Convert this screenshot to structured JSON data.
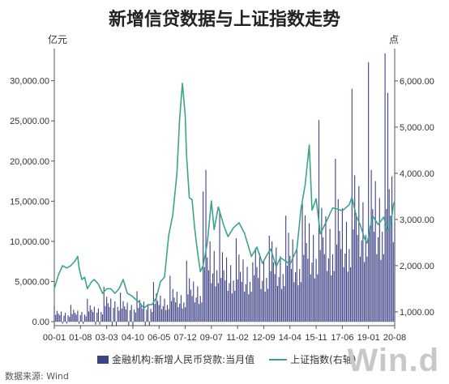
{
  "header": {
    "title": "新增信贷数据与上证指数走势",
    "unit_left": "亿元",
    "unit_right": "点"
  },
  "legend": {
    "bar_label": "金融机构:新增人民币贷款:当月值",
    "line_label": "上证指数(右轴)"
  },
  "footer": {
    "source": "数据来源: Wind",
    "logo": "Win.d"
  },
  "chart_data": {
    "type": "bar+line",
    "title": "新增信贷数据与上证指数走势",
    "x_tick_labels": [
      "00-01",
      "01-08",
      "03-03",
      "04-10",
      "06-05",
      "07-12",
      "09-07",
      "11-02",
      "12-09",
      "14-04",
      "15-11",
      "17-06",
      "19-01",
      "20-08"
    ],
    "x_range": [
      "2000-01",
      "2020-08"
    ],
    "y_left": {
      "unit": "亿元",
      "ylim": [
        -500,
        34000
      ],
      "ticks": [
        0,
        5000,
        10000,
        15000,
        20000,
        25000,
        30000
      ],
      "tick_labels": [
        "0.00",
        "5,000.00",
        "10,000.00",
        "15,000.00",
        "20,000.00",
        "25,000.00",
        "30,000.00"
      ]
    },
    "y_right": {
      "unit": "点",
      "ylim": [
        700,
        6700
      ],
      "ticks": [
        1000,
        2000,
        3000,
        4000,
        5000,
        6000
      ],
      "tick_labels": [
        "1,000.00",
        "2,000.00",
        "3,000.00",
        "4,000.00",
        "5,000.00",
        "6,000.00"
      ]
    },
    "bar_series": {
      "name": "金融机构:新增人民币贷款:当月值",
      "color": "#3d4185",
      "yearly_avg": {
        "2000": 1000,
        "2001": 1100,
        "2002": 1500,
        "2003": 2300,
        "2004": 1900,
        "2005": 2000,
        "2006": 2600,
        "2007": 3000,
        "2008": 4000,
        "2009": 8000,
        "2010": 6400,
        "2011": 6200,
        "2012": 6800,
        "2013": 7400,
        "2014": 8200,
        "2015": 9800,
        "2016": 10500,
        "2017": 11300,
        "2018": 13500,
        "2019": 14000,
        "2020": 16500
      },
      "peaks": [
        {
          "date": "2009-01",
          "value": 16200
        },
        {
          "date": "2009-03",
          "value": 18900
        },
        {
          "date": "2010-01",
          "value": 13900
        },
        {
          "date": "2011-01",
          "value": 10400
        },
        {
          "date": "2012-01",
          "value": 7400
        },
        {
          "date": "2013-01",
          "value": 10700
        },
        {
          "date": "2014-01",
          "value": 13200
        },
        {
          "date": "2015-01",
          "value": 14700
        },
        {
          "date": "2016-01",
          "value": 25100
        },
        {
          "date": "2017-01",
          "value": 20300
        },
        {
          "date": "2018-01",
          "value": 29000
        },
        {
          "date": "2019-01",
          "value": 32300
        },
        {
          "date": "2020-01",
          "value": 33400
        },
        {
          "date": "2020-03",
          "value": 28500
        },
        {
          "date": "2020-06",
          "value": 18100
        }
      ]
    },
    "line_series": {
      "name": "上证指数(右轴)",
      "color": "#3aa58c",
      "points": [
        [
          "2000-01",
          1500
        ],
        [
          "2000-04",
          1800
        ],
        [
          "2000-07",
          2000
        ],
        [
          "2000-10",
          1950
        ],
        [
          "2001-01",
          2000
        ],
        [
          "2001-04",
          2100
        ],
        [
          "2001-06",
          2200
        ],
        [
          "2001-07",
          1950
        ],
        [
          "2001-09",
          1700
        ],
        [
          "2001-11",
          1750
        ],
        [
          "2002-01",
          1500
        ],
        [
          "2002-04",
          1650
        ],
        [
          "2002-06",
          1700
        ],
        [
          "2002-09",
          1600
        ],
        [
          "2002-12",
          1400
        ],
        [
          "2003-03",
          1500
        ],
        [
          "2003-06",
          1500
        ],
        [
          "2003-09",
          1400
        ],
        [
          "2003-12",
          1500
        ],
        [
          "2004-03",
          1700
        ],
        [
          "2004-06",
          1400
        ],
        [
          "2004-09",
          1350
        ],
        [
          "2004-12",
          1270
        ],
        [
          "2005-03",
          1200
        ],
        [
          "2005-06",
          1080
        ],
        [
          "2005-09",
          1150
        ],
        [
          "2005-12",
          1160
        ],
        [
          "2006-03",
          1300
        ],
        [
          "2006-06",
          1650
        ],
        [
          "2006-09",
          1750
        ],
        [
          "2006-12",
          2650
        ],
        [
          "2007-03",
          3100
        ],
        [
          "2007-06",
          4000
        ],
        [
          "2007-08",
          5200
        ],
        [
          "2007-10",
          5950
        ],
        [
          "2007-12",
          5260
        ],
        [
          "2008-01",
          4380
        ],
        [
          "2008-03",
          3470
        ],
        [
          "2008-05",
          3430
        ],
        [
          "2008-07",
          2770
        ],
        [
          "2008-09",
          2290
        ],
        [
          "2008-11",
          1870
        ],
        [
          "2009-01",
          2000
        ],
        [
          "2009-04",
          2480
        ],
        [
          "2009-07",
          3400
        ],
        [
          "2009-09",
          2780
        ],
        [
          "2009-12",
          3270
        ],
        [
          "2010-04",
          2870
        ],
        [
          "2010-07",
          2630
        ],
        [
          "2010-11",
          2820
        ],
        [
          "2011-03",
          2930
        ],
        [
          "2011-07",
          2700
        ],
        [
          "2011-12",
          2200
        ],
        [
          "2012-04",
          2400
        ],
        [
          "2012-08",
          2050
        ],
        [
          "2012-12",
          2270
        ],
        [
          "2013-02",
          2360
        ],
        [
          "2013-06",
          1980
        ],
        [
          "2013-09",
          2170
        ],
        [
          "2013-12",
          2115
        ],
        [
          "2014-04",
          2030
        ],
        [
          "2014-09",
          2360
        ],
        [
          "2014-12",
          3230
        ],
        [
          "2015-03",
          3750
        ],
        [
          "2015-06",
          4610
        ],
        [
          "2015-08",
          3200
        ],
        [
          "2015-11",
          3450
        ],
        [
          "2016-02",
          2690
        ],
        [
          "2016-06",
          2930
        ],
        [
          "2016-11",
          3250
        ],
        [
          "2017-03",
          3220
        ],
        [
          "2017-06",
          3190
        ],
        [
          "2017-11",
          3320
        ],
        [
          "2018-01",
          3480
        ],
        [
          "2018-04",
          3080
        ],
        [
          "2018-07",
          2880
        ],
        [
          "2018-10",
          2600
        ],
        [
          "2018-12",
          2490
        ],
        [
          "2019-04",
          3080
        ],
        [
          "2019-08",
          2890
        ],
        [
          "2019-12",
          3050
        ],
        [
          "2020-03",
          2750
        ],
        [
          "2020-05",
          2850
        ],
        [
          "2020-07",
          3310
        ],
        [
          "2020-08",
          3400
        ]
      ]
    },
    "grid": false,
    "legend_position": "bottom"
  }
}
